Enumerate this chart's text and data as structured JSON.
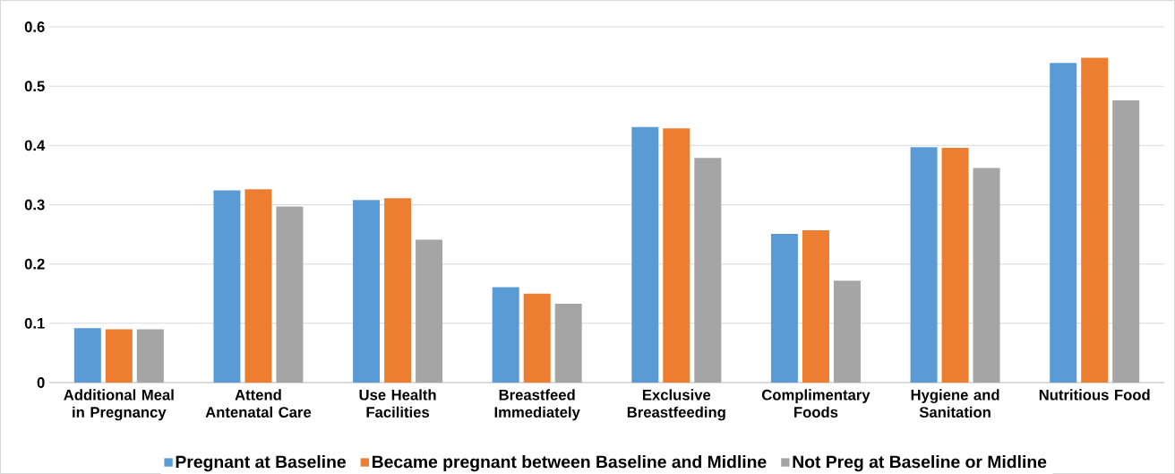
{
  "chart_data": {
    "type": "bar",
    "categories": [
      "Additional Meal in Pregnancy",
      "Attend Antenatal Care",
      "Use Health Facilities",
      "Breastfeed Immediately",
      "Exclusive Breastfeeding",
      "Complimentary Foods",
      "Hygiene and Sanitation",
      "Nutritious Food"
    ],
    "series": [
      {
        "name": "Pregnant at Baseline",
        "color": "#5b9bd5",
        "values": [
          0.092,
          0.324,
          0.308,
          0.161,
          0.431,
          0.251,
          0.397,
          0.539
        ]
      },
      {
        "name": "Became pregnant between Baseline and Midline",
        "color": "#ed7d31",
        "values": [
          0.09,
          0.326,
          0.311,
          0.15,
          0.429,
          0.257,
          0.396,
          0.548
        ]
      },
      {
        "name": "Not Preg at Baseline or Midline",
        "color": "#a5a5a5",
        "values": [
          0.09,
          0.297,
          0.241,
          0.133,
          0.379,
          0.172,
          0.362,
          0.476
        ]
      }
    ],
    "ylim": [
      0,
      0.6
    ],
    "yticks": [
      0,
      0.1,
      0.2,
      0.3,
      0.4,
      0.5,
      0.6
    ],
    "grid": "y",
    "legend": "bottom"
  }
}
